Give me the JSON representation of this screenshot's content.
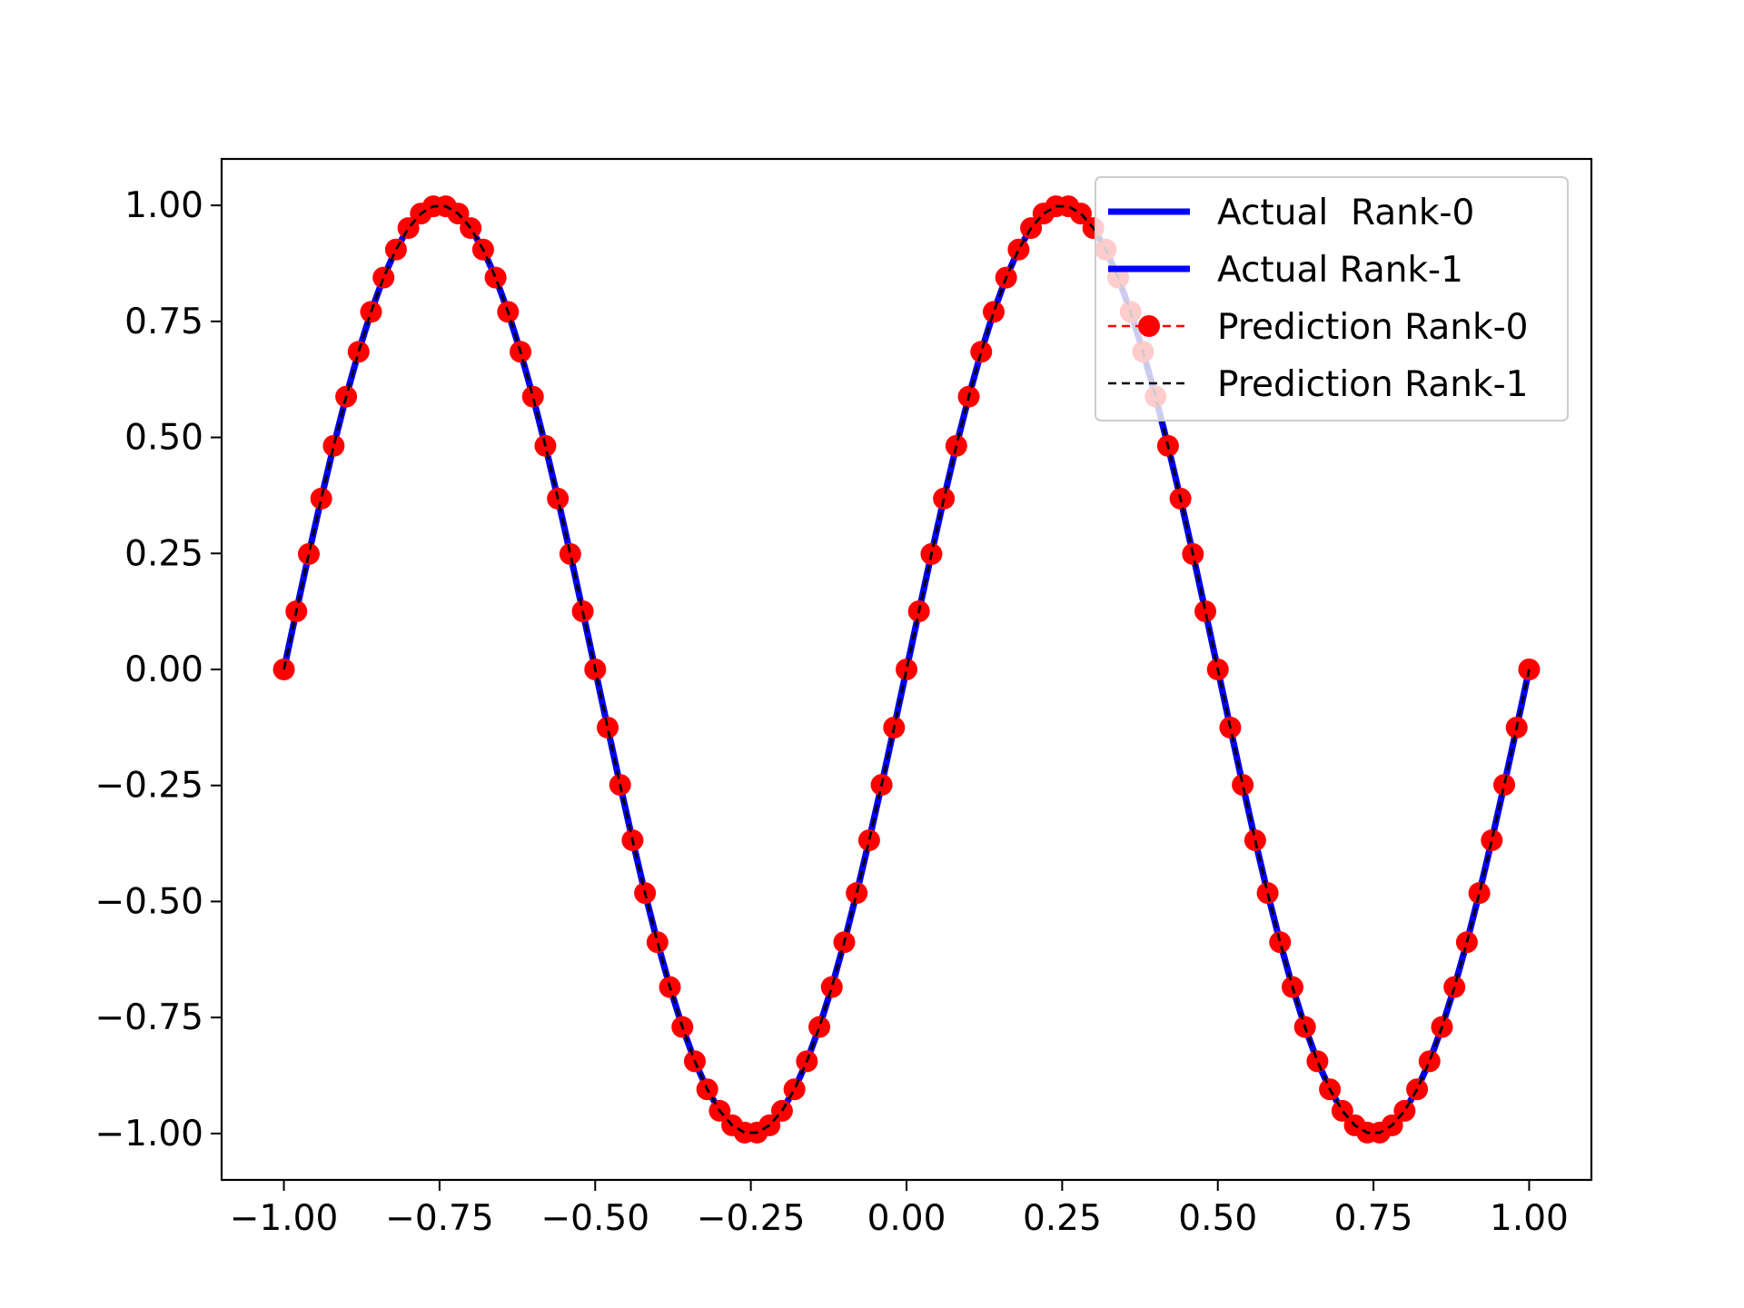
{
  "chart_data": {
    "type": "line",
    "xlim": [
      -1.1,
      1.1
    ],
    "ylim": [
      -1.1,
      1.1
    ],
    "xticks": [
      -1.0,
      -0.75,
      -0.5,
      -0.25,
      0.0,
      0.25,
      0.5,
      0.75,
      1.0
    ],
    "yticks": [
      -1.0,
      -0.75,
      -0.5,
      -0.25,
      0.0,
      0.25,
      0.5,
      0.75,
      1.0
    ],
    "xtick_labels": [
      "−1.00",
      "−0.75",
      "−0.50",
      "−0.25",
      "0.00",
      "0.25",
      "0.50",
      "0.75",
      "1.00"
    ],
    "ytick_labels": [
      "−1.00",
      "−0.75",
      "−0.50",
      "−0.25",
      "0.00",
      "0.25",
      "0.50",
      "0.75",
      "1.00"
    ],
    "grid": false,
    "legend_position": "top-right",
    "x": [
      -1.0,
      -0.98,
      -0.96,
      -0.94,
      -0.92,
      -0.9,
      -0.88,
      -0.86,
      -0.84,
      -0.82,
      -0.8,
      -0.78,
      -0.76,
      -0.74,
      -0.72,
      -0.7,
      -0.68,
      -0.66,
      -0.64,
      -0.62,
      -0.6,
      -0.58,
      -0.56,
      -0.54,
      -0.52,
      -0.5,
      -0.48,
      -0.46,
      -0.44,
      -0.42,
      -0.4,
      -0.38,
      -0.36,
      -0.34,
      -0.32,
      -0.3,
      -0.28,
      -0.26,
      -0.24,
      -0.22,
      -0.2,
      -0.18,
      -0.16,
      -0.14,
      -0.12,
      -0.1,
      -0.08,
      -0.06,
      -0.04,
      -0.02,
      0.0,
      0.02,
      0.04,
      0.06,
      0.08,
      0.1,
      0.12,
      0.14,
      0.16,
      0.18,
      0.2,
      0.22,
      0.24,
      0.26,
      0.28,
      0.3,
      0.32,
      0.34,
      0.36,
      0.38,
      0.4,
      0.42,
      0.44,
      0.46,
      0.48,
      0.5,
      0.52,
      0.54,
      0.56,
      0.58,
      0.6,
      0.62,
      0.64,
      0.66,
      0.68,
      0.7,
      0.72,
      0.74,
      0.76,
      0.78,
      0.8,
      0.82,
      0.84,
      0.86,
      0.88,
      0.9,
      0.92,
      0.94,
      0.96,
      0.98,
      1.0
    ],
    "series": [
      {
        "name": "Actual  Rank-0",
        "color": "#0000ff",
        "style": "solid",
        "marker": "none",
        "values": [
          0.0,
          0.1253,
          0.2487,
          0.3681,
          0.4818,
          0.5878,
          0.6845,
          0.7705,
          0.8443,
          0.9048,
          0.9511,
          0.9823,
          0.998,
          0.998,
          0.9823,
          0.9511,
          0.9048,
          0.8443,
          0.7705,
          0.6845,
          0.5878,
          0.4818,
          0.3681,
          0.2487,
          0.1253,
          0.0,
          -0.1253,
          -0.2487,
          -0.3681,
          -0.4818,
          -0.5878,
          -0.6845,
          -0.7705,
          -0.8443,
          -0.9048,
          -0.9511,
          -0.9823,
          -0.998,
          -0.998,
          -0.9823,
          -0.9511,
          -0.9048,
          -0.8443,
          -0.7705,
          -0.6845,
          -0.5878,
          -0.4818,
          -0.3681,
          -0.2487,
          -0.1253,
          0.0,
          0.1253,
          0.2487,
          0.3681,
          0.4818,
          0.5878,
          0.6845,
          0.7705,
          0.8443,
          0.9048,
          0.9511,
          0.9823,
          0.998,
          0.998,
          0.9823,
          0.9511,
          0.9048,
          0.8443,
          0.7705,
          0.6845,
          0.5878,
          0.4818,
          0.3681,
          0.2487,
          0.1253,
          0.0,
          -0.1253,
          -0.2487,
          -0.3681,
          -0.4818,
          -0.5878,
          -0.6845,
          -0.7705,
          -0.8443,
          -0.9048,
          -0.9511,
          -0.9823,
          -0.998,
          -0.998,
          -0.9823,
          -0.9511,
          -0.9048,
          -0.8443,
          -0.7705,
          -0.6845,
          -0.5878,
          -0.4818,
          -0.3681,
          -0.2487,
          -0.1253,
          0.0
        ]
      },
      {
        "name": "Actual Rank-1",
        "color": "#0000ff",
        "style": "solid",
        "marker": "none",
        "values": [
          0.0,
          0.1253,
          0.2487,
          0.3681,
          0.4818,
          0.5878,
          0.6845,
          0.7705,
          0.8443,
          0.9048,
          0.9511,
          0.9823,
          0.998,
          0.998,
          0.9823,
          0.9511,
          0.9048,
          0.8443,
          0.7705,
          0.6845,
          0.5878,
          0.4818,
          0.3681,
          0.2487,
          0.1253,
          0.0,
          -0.1253,
          -0.2487,
          -0.3681,
          -0.4818,
          -0.5878,
          -0.6845,
          -0.7705,
          -0.8443,
          -0.9048,
          -0.9511,
          -0.9823,
          -0.998,
          -0.998,
          -0.9823,
          -0.9511,
          -0.9048,
          -0.8443,
          -0.7705,
          -0.6845,
          -0.5878,
          -0.4818,
          -0.3681,
          -0.2487,
          -0.1253,
          0.0,
          0.1253,
          0.2487,
          0.3681,
          0.4818,
          0.5878,
          0.6845,
          0.7705,
          0.8443,
          0.9048,
          0.9511,
          0.9823,
          0.998,
          0.998,
          0.9823,
          0.9511,
          0.9048,
          0.8443,
          0.7705,
          0.6845,
          0.5878,
          0.4818,
          0.3681,
          0.2487,
          0.1253,
          0.0,
          -0.1253,
          -0.2487,
          -0.3681,
          -0.4818,
          -0.5878,
          -0.6845,
          -0.7705,
          -0.8443,
          -0.9048,
          -0.9511,
          -0.9823,
          -0.998,
          -0.998,
          -0.9823,
          -0.9511,
          -0.9048,
          -0.8443,
          -0.7705,
          -0.6845,
          -0.5878,
          -0.4818,
          -0.3681,
          -0.2487,
          -0.1253,
          0.0
        ]
      },
      {
        "name": "Prediction Rank-0",
        "color": "#ff0000",
        "style": "dashed",
        "marker": "circle",
        "values": [
          0.0,
          0.1253,
          0.2487,
          0.3681,
          0.4818,
          0.5878,
          0.6845,
          0.7705,
          0.8443,
          0.9048,
          0.9511,
          0.9823,
          0.998,
          0.998,
          0.9823,
          0.9511,
          0.9048,
          0.8443,
          0.7705,
          0.6845,
          0.5878,
          0.4818,
          0.3681,
          0.2487,
          0.1253,
          0.0,
          -0.1253,
          -0.2487,
          -0.3681,
          -0.4818,
          -0.5878,
          -0.6845,
          -0.7705,
          -0.8443,
          -0.9048,
          -0.9511,
          -0.9823,
          -0.998,
          -0.998,
          -0.9823,
          -0.9511,
          -0.9048,
          -0.8443,
          -0.7705,
          -0.6845,
          -0.5878,
          -0.4818,
          -0.3681,
          -0.2487,
          -0.1253,
          0.0,
          0.1253,
          0.2487,
          0.3681,
          0.4818,
          0.5878,
          0.6845,
          0.7705,
          0.8443,
          0.9048,
          0.9511,
          0.9823,
          0.998,
          0.998,
          0.9823,
          0.9511,
          0.9048,
          0.8443,
          0.7705,
          0.6845,
          0.5878,
          0.4818,
          0.3681,
          0.2487,
          0.1253,
          0.0,
          -0.1253,
          -0.2487,
          -0.3681,
          -0.4818,
          -0.5878,
          -0.6845,
          -0.7705,
          -0.8443,
          -0.9048,
          -0.9511,
          -0.9823,
          -0.998,
          -0.998,
          -0.9823,
          -0.9511,
          -0.9048,
          -0.8443,
          -0.7705,
          -0.6845,
          -0.5878,
          -0.4818,
          -0.3681,
          -0.2487,
          -0.1253,
          0.0
        ]
      },
      {
        "name": "Prediction Rank-1",
        "color": "#000000",
        "style": "dashed",
        "marker": "none",
        "values": [
          0.0,
          0.1253,
          0.2487,
          0.3681,
          0.4818,
          0.5878,
          0.6845,
          0.7705,
          0.8443,
          0.9048,
          0.9511,
          0.9823,
          0.998,
          0.998,
          0.9823,
          0.9511,
          0.9048,
          0.8443,
          0.7705,
          0.6845,
          0.5878,
          0.4818,
          0.3681,
          0.2487,
          0.1253,
          0.0,
          -0.1253,
          -0.2487,
          -0.3681,
          -0.4818,
          -0.5878,
          -0.6845,
          -0.7705,
          -0.8443,
          -0.9048,
          -0.9511,
          -0.9823,
          -0.998,
          -0.998,
          -0.9823,
          -0.9511,
          -0.9048,
          -0.8443,
          -0.7705,
          -0.6845,
          -0.5878,
          -0.4818,
          -0.3681,
          -0.2487,
          -0.1253,
          0.0,
          0.1253,
          0.2487,
          0.3681,
          0.4818,
          0.5878,
          0.6845,
          0.7705,
          0.8443,
          0.9048,
          0.9511,
          0.9823,
          0.998,
          0.998,
          0.9823,
          0.9511,
          0.9048,
          0.8443,
          0.7705,
          0.6845,
          0.5878,
          0.4818,
          0.3681,
          0.2487,
          0.1253,
          0.0,
          -0.1253,
          -0.2487,
          -0.3681,
          -0.4818,
          -0.5878,
          -0.6845,
          -0.7705,
          -0.8443,
          -0.9048,
          -0.9511,
          -0.9823,
          -0.998,
          -0.998,
          -0.9823,
          -0.9511,
          -0.9048,
          -0.8443,
          -0.7705,
          -0.6845,
          -0.5878,
          -0.4818,
          -0.3681,
          -0.2487,
          -0.1253,
          0.0
        ]
      }
    ]
  }
}
